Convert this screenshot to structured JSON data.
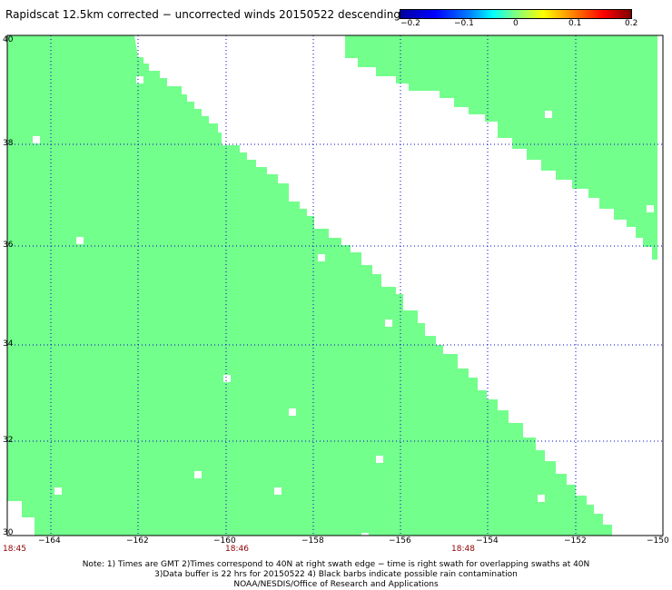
{
  "title": "Rapidscat 12.5km corrected − uncorrected winds 20150522 descending",
  "colorbar": {
    "labels": [
      "−0.2",
      "−0.1",
      "0",
      "0.1",
      "0.2"
    ],
    "range": [
      -0.2,
      0.2
    ]
  },
  "map": {
    "lon_range": [
      -165,
      -150
    ],
    "lat_range": [
      30,
      40
    ],
    "lon_ticks": [
      "−164",
      "−162",
      "−160",
      "−158",
      "−156",
      "−154",
      "−152",
      "−150"
    ],
    "lat_ticks": [
      "40",
      "38",
      "36",
      "34",
      "32",
      "30"
    ],
    "swath_color": "#73ff8c",
    "grid": true
  },
  "times": [
    "18:45",
    "18:46",
    "18:48"
  ],
  "notes": [
    "Note: 1) Times are GMT 2)Times correspond to 40N at right swath edge − time is right swath for overlapping swaths at 40N",
    "3)Data buffer is 22 hrs for 20150522 4) Black barbs indicate possible rain contamination",
    "NOAA/NESDIS/Office of Research and Applications"
  ]
}
